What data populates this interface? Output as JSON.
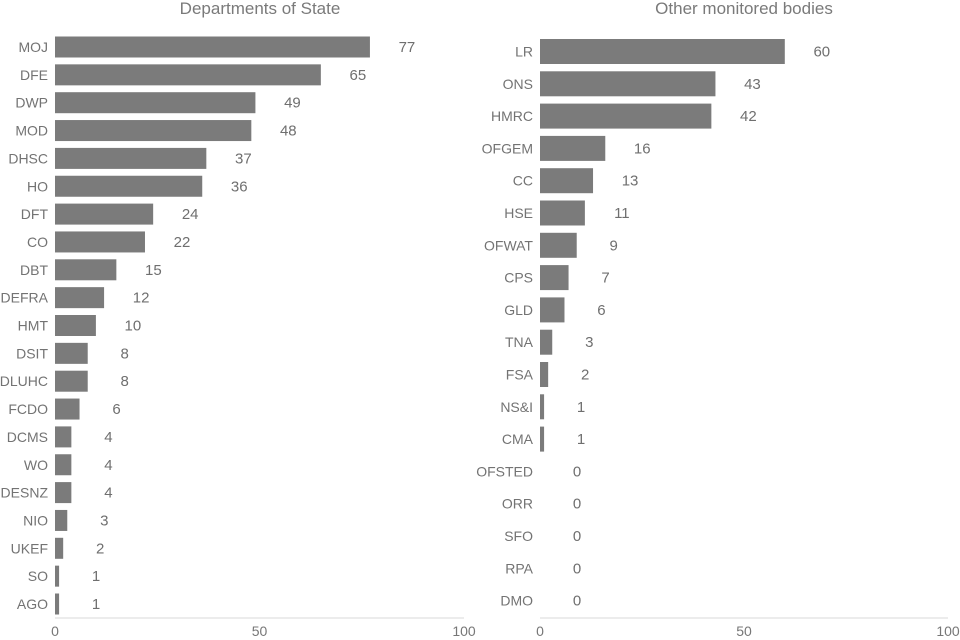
{
  "chart_data": [
    {
      "type": "bar",
      "orientation": "horizontal",
      "title": "Departments of State",
      "xlabel": "",
      "ylabel": "",
      "xlim": [
        0,
        100
      ],
      "x_ticks": [
        0,
        50,
        100
      ],
      "grid": false,
      "bar_color": "#7b7b7b",
      "categories": [
        "MOJ",
        "DFE",
        "DWP",
        "MOD",
        "DHSC",
        "HO",
        "DFT",
        "CO",
        "DBT",
        "DEFRA",
        "HMT",
        "DSIT",
        "DLUHC",
        "FCDO",
        "DCMS",
        "WO",
        "DESNZ",
        "NIO",
        "UKEF",
        "SO",
        "AGO"
      ],
      "values": [
        77,
        65,
        49,
        48,
        37,
        36,
        24,
        22,
        15,
        12,
        10,
        8,
        8,
        6,
        4,
        4,
        4,
        3,
        2,
        1,
        1
      ]
    },
    {
      "type": "bar",
      "orientation": "horizontal",
      "title": "Other monitored bodies",
      "xlabel": "",
      "ylabel": "",
      "xlim": [
        0,
        100
      ],
      "x_ticks": [
        0,
        50,
        100
      ],
      "grid": false,
      "bar_color": "#7b7b7b",
      "categories": [
        "LR",
        "ONS",
        "HMRC",
        "OFGEM",
        "CC",
        "HSE",
        "OFWAT",
        "CPS",
        "GLD",
        "TNA",
        "FSA",
        "NS&I",
        "CMA",
        "OFSTED",
        "ORR",
        "SFO",
        "RPA",
        "DMO"
      ],
      "values": [
        60,
        43,
        42,
        16,
        13,
        11,
        9,
        7,
        6,
        3,
        2,
        1,
        1,
        0,
        0,
        0,
        0,
        0
      ]
    }
  ]
}
